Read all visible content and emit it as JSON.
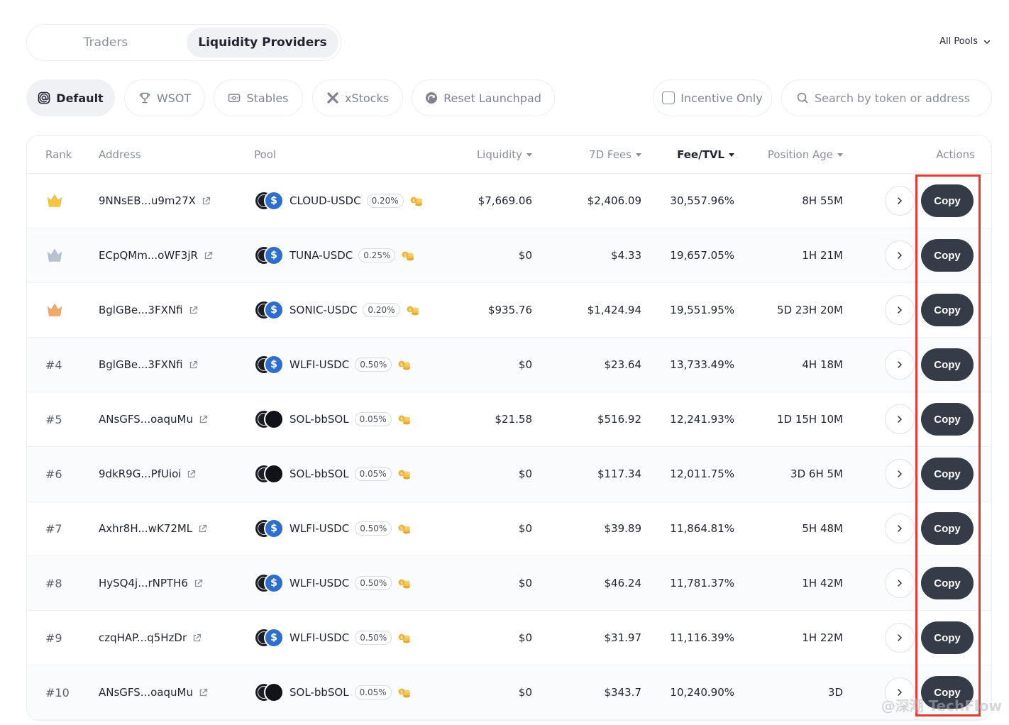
{
  "tabs": {
    "traders": "Traders",
    "liquidity_providers": "Liquidity Providers"
  },
  "pool_filter": {
    "label": "All Pools"
  },
  "filters": {
    "default": "Default",
    "wsot": "WSOT",
    "stables": "Stables",
    "xstocks": "xStocks",
    "reset_launchpad": "Reset Launchpad",
    "incentive_only": "Incentive Only",
    "search_placeholder": "Search by token or address"
  },
  "columns": {
    "rank": "Rank",
    "address": "Address",
    "pool": "Pool",
    "liquidity": "Liquidity",
    "fees_7d": "7D Fees",
    "fee_tvl": "Fee/TVL",
    "position_age": "Position Age",
    "actions": "Actions"
  },
  "copy_label": "Copy",
  "rows": [
    {
      "rank": "",
      "medal": "gold",
      "address": "9NNsEB...u9m27X",
      "pool": "CLOUD-USDC",
      "fee": "0.20%",
      "liquidity": "$7,669.06",
      "fees_7d": "$2,406.09",
      "fee_tvl": "30,557.96%",
      "age": "8H 55M"
    },
    {
      "rank": "",
      "medal": "silver",
      "address": "ECpQMm...oWF3jR",
      "pool": "TUNA-USDC",
      "fee": "0.25%",
      "liquidity": "$0",
      "fees_7d": "$4.33",
      "fee_tvl": "19,657.05%",
      "age": "1H 21M"
    },
    {
      "rank": "",
      "medal": "bronze",
      "address": "BglGBe...3FXNfi",
      "pool": "SONIC-USDC",
      "fee": "0.20%",
      "liquidity": "$935.76",
      "fees_7d": "$1,424.94",
      "fee_tvl": "19,551.95%",
      "age": "5D 23H 20M"
    },
    {
      "rank": "#4",
      "address": "BglGBe...3FXNfi",
      "pool": "WLFI-USDC",
      "fee": "0.50%",
      "liquidity": "$0",
      "fees_7d": "$23.64",
      "fee_tvl": "13,733.49%",
      "age": "4H 18M"
    },
    {
      "rank": "#5",
      "address": "ANsGFS...oaquMu",
      "pool": "SOL-bbSOL",
      "fee": "0.05%",
      "liquidity": "$21.58",
      "fees_7d": "$516.92",
      "fee_tvl": "12,241.93%",
      "age": "1D 15H 10M"
    },
    {
      "rank": "#6",
      "address": "9dkR9G...PfUioi",
      "pool": "SOL-bbSOL",
      "fee": "0.05%",
      "liquidity": "$0",
      "fees_7d": "$117.34",
      "fee_tvl": "12,011.75%",
      "age": "3D 6H 5M"
    },
    {
      "rank": "#7",
      "address": "Axhr8H...wK72ML",
      "pool": "WLFI-USDC",
      "fee": "0.50%",
      "liquidity": "$0",
      "fees_7d": "$39.89",
      "fee_tvl": "11,864.81%",
      "age": "5H 48M"
    },
    {
      "rank": "#8",
      "address": "HySQ4j...rNPTH6",
      "pool": "WLFI-USDC",
      "fee": "0.50%",
      "liquidity": "$0",
      "fees_7d": "$46.24",
      "fee_tvl": "11,781.37%",
      "age": "1H 42M"
    },
    {
      "rank": "#9",
      "address": "czqHAP...q5HzDr",
      "pool": "WLFI-USDC",
      "fee": "0.50%",
      "liquidity": "$0",
      "fees_7d": "$31.97",
      "fee_tvl": "11,116.39%",
      "age": "1H 22M"
    },
    {
      "rank": "#10",
      "address": "ANsGFS...oaquMu",
      "pool": "SOL-bbSOL",
      "fee": "0.05%",
      "liquidity": "$0",
      "fees_7d": "$343.7",
      "fee_tvl": "10,240.90%",
      "age": "3D"
    }
  ],
  "watermark": "@深潮 TechFlow",
  "colors": {
    "accent_dark": "#353b47",
    "highlight": "#e53935",
    "medal_gold": "#f5c542",
    "medal_silver": "#b9c3cf",
    "medal_bronze": "#f0a86b"
  }
}
